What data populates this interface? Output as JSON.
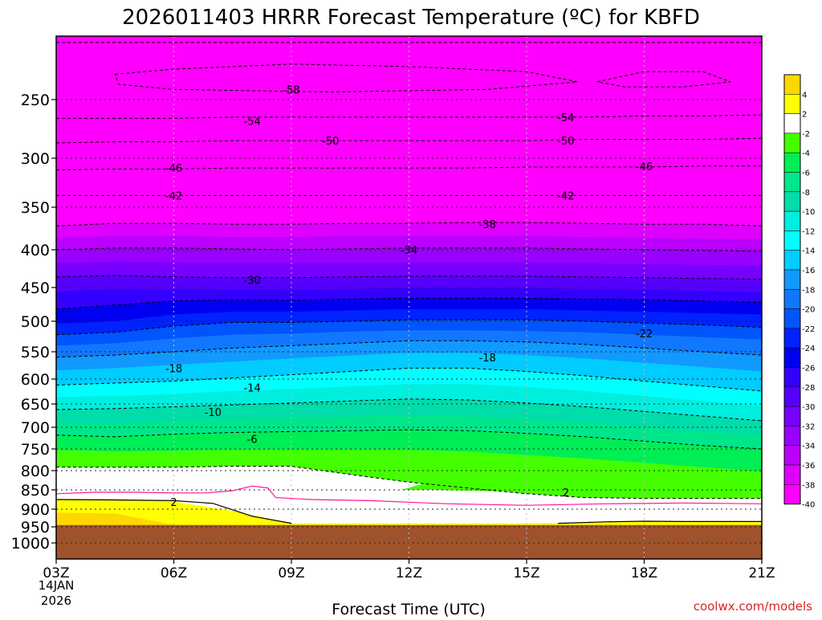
{
  "title": "2026011403 HRRR Forecast Temperature (ºC) for KBFD",
  "xlabel": "Forecast Time (UTC)",
  "credit": "coolwx.com/models",
  "chart_data": {
    "type": "contour",
    "title": "2026011403 HRRR Forecast Temperature (ºC) for KBFD",
    "xlabel": "Forecast Time (UTC)",
    "ylabel": "",
    "x_ticks": [
      "03Z",
      "06Z",
      "09Z",
      "12Z",
      "15Z",
      "18Z",
      "21Z"
    ],
    "x_date_label": [
      "14JAN",
      "2026"
    ],
    "y_ticks": [
      250,
      300,
      350,
      400,
      450,
      500,
      550,
      600,
      650,
      700,
      750,
      800,
      850,
      900,
      950,
      1000
    ],
    "y_axis": "pressure (hPa), reversed",
    "x_range": [
      3,
      21
    ],
    "y_range": [
      200,
      1030
    ],
    "grid": true,
    "colorbar": {
      "labels": [
        4,
        2,
        -2,
        -4,
        -6,
        -8,
        -10,
        -12,
        -14,
        -16,
        -18,
        -20,
        -22,
        -24,
        -26,
        -28,
        -30,
        -32,
        -34,
        -36,
        -38,
        -40
      ],
      "colors": [
        "#ffd700",
        "#ffff00",
        "#ffffff",
        "#44ff00",
        "#00ee55",
        "#00e68a",
        "#00ddaa",
        "#00eedd",
        "#00ffff",
        "#00ccff",
        "#1199ff",
        "#1177ff",
        "#0055ff",
        "#0022ff",
        "#0000f0",
        "#3300ff",
        "#5500ff",
        "#7700ff",
        "#9900ff",
        "#bb00ff",
        "#dd00ff",
        "#ff00ff"
      ]
    },
    "contour_labels": [
      {
        "label": "-58",
        "x": 9.0,
        "y": 242
      },
      {
        "label": "-54",
        "x": 8.0,
        "y": 268
      },
      {
        "label": "-54",
        "x": 16.0,
        "y": 265
      },
      {
        "label": "-50",
        "x": 10.0,
        "y": 285
      },
      {
        "label": "-50",
        "x": 16.0,
        "y": 285
      },
      {
        "label": "-46",
        "x": 6.0,
        "y": 310
      },
      {
        "label": "-46",
        "x": 18.0,
        "y": 308
      },
      {
        "label": "-42",
        "x": 6.0,
        "y": 338
      },
      {
        "label": "-42",
        "x": 16.0,
        "y": 338
      },
      {
        "label": "-38",
        "x": 14.0,
        "y": 370
      },
      {
        "label": "-34",
        "x": 12.0,
        "y": 400
      },
      {
        "label": "-30",
        "x": 8.0,
        "y": 440
      },
      {
        "label": "-22",
        "x": 18.0,
        "y": 520
      },
      {
        "label": "-18",
        "x": 6.0,
        "y": 580
      },
      {
        "label": "-18",
        "x": 14.0,
        "y": 560
      },
      {
        "label": "-14",
        "x": 8.0,
        "y": 617
      },
      {
        "label": "-10",
        "x": 7.0,
        "y": 667
      },
      {
        "label": "-6",
        "x": 8.0,
        "y": 727
      },
      {
        "label": "2",
        "x": 6.0,
        "y": 881
      },
      {
        "label": "2",
        "x": 16.0,
        "y": 856
      }
    ]
  }
}
